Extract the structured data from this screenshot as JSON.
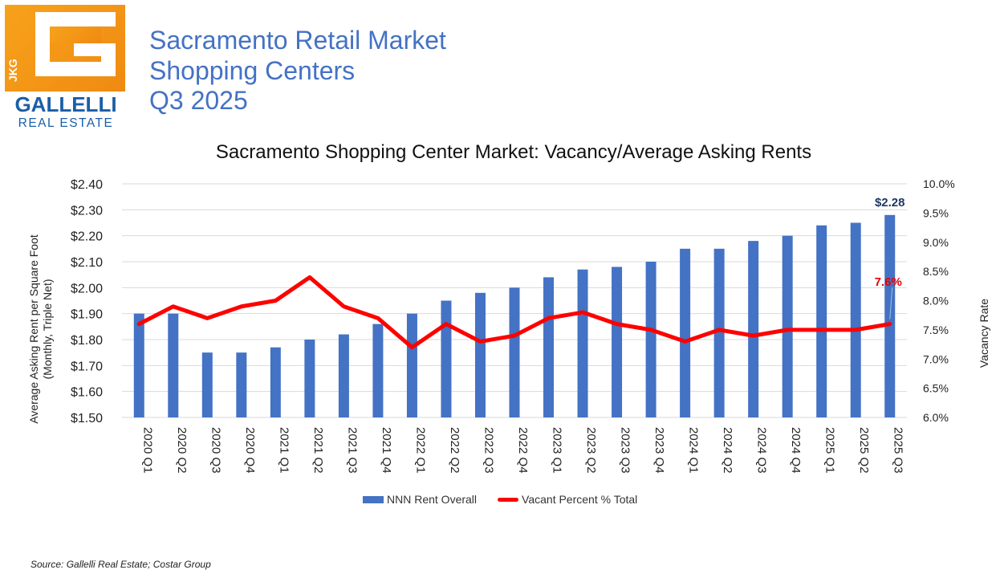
{
  "logo": {
    "side_text": "JKG",
    "name": "GALLELLI",
    "tagline": "REAL ESTATE"
  },
  "header": {
    "line1": "Sacramento Retail Market",
    "line2": "Shopping Centers",
    "line3": "Q3 2025"
  },
  "chart_data": {
    "type": "bar",
    "title": "Sacramento Shopping Center Market: Vacancy/Average Asking Rents",
    "categories": [
      "2020 Q1",
      "2020 Q2",
      "2020 Q3",
      "2020 Q4",
      "2021 Q1",
      "2021 Q2",
      "2021 Q3",
      "2021 Q4",
      "2022 Q1",
      "2022 Q2",
      "2022 Q3",
      "2022 Q4",
      "2023 Q1",
      "2023 Q2",
      "2023 Q3",
      "2023 Q4",
      "2024 Q1",
      "2024 Q2",
      "2024 Q3",
      "2024 Q4",
      "2025 Q1",
      "2025 Q2",
      "2025 Q3"
    ],
    "series": [
      {
        "name": "NNN Rent Overall",
        "type": "bar",
        "axis": "left",
        "color": "#4472c4",
        "values": [
          1.9,
          1.9,
          1.75,
          1.75,
          1.77,
          1.8,
          1.82,
          1.86,
          1.9,
          1.95,
          1.98,
          2.0,
          2.04,
          2.07,
          2.08,
          2.1,
          2.15,
          2.15,
          2.18,
          2.2,
          2.24,
          2.25,
          2.28
        ]
      },
      {
        "name": "Vacant Percent % Total",
        "type": "line",
        "axis": "right",
        "color": "#ff0000",
        "values": [
          7.6,
          7.9,
          7.7,
          7.9,
          8.0,
          8.4,
          7.9,
          7.7,
          7.2,
          7.6,
          7.3,
          7.4,
          7.7,
          7.8,
          7.6,
          7.5,
          7.3,
          7.5,
          7.4,
          7.5,
          7.5,
          7.5,
          7.6
        ]
      }
    ],
    "ylabel_left": "Average Asking Rent per Square Foot",
    "ylabel_left_sub": "(Monthly, Triple Net)",
    "ylabel_right": "Vacancy Rate",
    "ylim_left": [
      1.5,
      2.4
    ],
    "ylim_right": [
      6.0,
      10.0
    ],
    "yticks_left": [
      "$1.50",
      "$1.60",
      "$1.70",
      "$1.80",
      "$1.90",
      "$2.00",
      "$2.10",
      "$2.20",
      "$2.30",
      "$2.40"
    ],
    "yticks_right": [
      "6.0%",
      "6.5%",
      "7.0%",
      "7.5%",
      "8.0%",
      "8.5%",
      "9.0%",
      "9.5%",
      "10.0%"
    ],
    "annotations": {
      "last_rent": "$2.28",
      "last_vacancy": "7.6%"
    },
    "grid": true,
    "legend": "bottom"
  },
  "source": "Source: Gallelli Real Estate; Costar Group"
}
